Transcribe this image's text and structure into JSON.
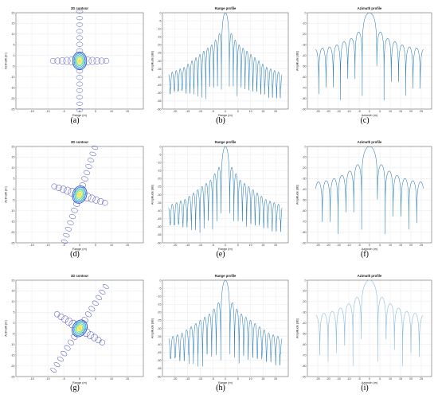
{
  "captions": [
    "(a)",
    "(b)",
    "(c)",
    "(d)",
    "(e)",
    "(f)",
    "(g)",
    "(h)",
    "(i)"
  ],
  "colors": {
    "line": "#2a7db8",
    "line_light": "#7fb6d9",
    "grid": "#e2e2e2",
    "axis": "#666666"
  },
  "chart_data": [
    {
      "id": "a",
      "type": "contour",
      "title": "2D contour",
      "xlabel": "Range (m)",
      "ylabel": "Azimuth (m)",
      "xlim": [
        -20,
        20
      ],
      "ylim": [
        -25,
        25
      ],
      "xticks": [
        "-15",
        "-10",
        "-5",
        "0",
        "5",
        "10",
        "15"
      ],
      "yticks": [
        "20",
        "15",
        "10",
        "5",
        "0",
        "-5",
        "-10",
        "-15",
        "-20",
        "-25"
      ],
      "rotation_deg": 0,
      "x_sidelobes": 5,
      "y_sidelobes": 7
    },
    {
      "id": "b",
      "type": "line",
      "title": "Range profile",
      "xlabel": "Range (m)",
      "ylabel": "Amplitude (dB)",
      "xlim": [
        -20,
        20
      ],
      "ylim": [
        -60,
        0
      ],
      "xticks": [
        "-20",
        "-15",
        "-10",
        "-5",
        "0",
        "5",
        "10",
        "15",
        "20"
      ],
      "yticks": [
        "0",
        "-5",
        "-10",
        "-15",
        "-20",
        "-25",
        "-30",
        "-35",
        "-40",
        "-45",
        "-50",
        "-55",
        "-60"
      ],
      "null_spacing": 1.25,
      "x_extent": [
        -18,
        18
      ],
      "slope_db_per_m": 1.0,
      "series": [
        {
          "peaks_db": [
            0,
            -13,
            -17,
            -20,
            -22,
            -24,
            -26,
            -28,
            -30,
            -32,
            -34,
            -35,
            -36,
            -37,
            -38
          ]
        }
      ]
    },
    {
      "id": "c",
      "type": "line",
      "title": "Azimuth profile",
      "xlabel": "Azimuth (m)",
      "ylabel": "Amplitude (dB)",
      "xlim": [
        -30,
        30
      ],
      "ylim": [
        -90,
        0
      ],
      "xticks": [
        "-25",
        "-20",
        "-15",
        "-10",
        "-5",
        "0",
        "5",
        "10",
        "15",
        "20",
        "25"
      ],
      "yticks": [
        "0",
        "-10",
        "-20",
        "-30",
        "-40",
        "-50",
        "-60",
        "-70",
        "-80",
        "-90"
      ],
      "null_spacing": 3.5,
      "x_extent": [
        -26,
        26
      ],
      "series": [
        {
          "peaks_db": [
            0,
            -18,
            -24,
            -27,
            -30,
            -32,
            -33,
            -34
          ]
        }
      ]
    },
    {
      "id": "d",
      "type": "contour",
      "title": "2D contour",
      "xlabel": "Range (m)",
      "ylabel": "Azimuth (m)",
      "xlim": [
        -20,
        20
      ],
      "ylim": [
        -25,
        25
      ],
      "xticks": [
        "-15",
        "-10",
        "-5",
        "0",
        "5",
        "10",
        "15"
      ],
      "yticks": [
        "20",
        "15",
        "10",
        "5",
        "0",
        "-5",
        "-10",
        "-15",
        "-20",
        "-25"
      ],
      "rotation_deg": 18,
      "x_sidelobes": 5,
      "y_sidelobes": 7
    },
    {
      "id": "e",
      "type": "line",
      "title": "Range profile",
      "xlabel": "Range (m)",
      "ylabel": "Amplitude (dB)",
      "xlim": [
        -20,
        20
      ],
      "ylim": [
        -60,
        0
      ],
      "xticks": [
        "-20",
        "-15",
        "-10",
        "-5",
        "0",
        "5",
        "10",
        "15",
        "20"
      ],
      "yticks": [
        "0",
        "-5",
        "-10",
        "-15",
        "-20",
        "-25",
        "-30",
        "-35",
        "-40",
        "-45",
        "-50",
        "-55",
        "-60"
      ],
      "null_spacing": 1.35,
      "x_extent": [
        -18,
        18
      ],
      "slope_db_per_m": 0.9,
      "series": [
        {
          "peaks_db": [
            0,
            -13,
            -17,
            -21,
            -23,
            -25,
            -27,
            -29,
            -31,
            -33,
            -34,
            -35,
            -36,
            -37
          ]
        }
      ]
    },
    {
      "id": "f",
      "type": "line",
      "title": "Azimuth profile",
      "xlabel": "Azimuth (m)",
      "ylabel": "Amplitude (dB)",
      "xlim": [
        -30,
        30
      ],
      "ylim": [
        -90,
        0
      ],
      "xticks": [
        "-25",
        "-20",
        "-15",
        "-10",
        "-5",
        "0",
        "5",
        "10",
        "15",
        "20",
        "25"
      ],
      "yticks": [
        "0",
        "-10",
        "-20",
        "-30",
        "-40",
        "-50",
        "-60",
        "-70",
        "-80",
        "-90"
      ],
      "null_spacing": 3.8,
      "x_extent": [
        -26,
        26
      ],
      "series": [
        {
          "peaks_db": [
            0,
            -17,
            -23,
            -27,
            -30,
            -32,
            -33
          ]
        }
      ]
    },
    {
      "id": "g",
      "type": "contour",
      "title": "2D contour",
      "xlabel": "Range (m)",
      "ylabel": "Azimuth (m)",
      "xlim": [
        -20,
        20
      ],
      "ylim": [
        -25,
        25
      ],
      "xticks": [
        "-15",
        "-10",
        "-5",
        "0",
        "5",
        "10",
        "15"
      ],
      "yticks": [
        "20",
        "15",
        "10",
        "5",
        "0",
        "-5",
        "-10",
        "-15",
        "-20",
        "-25"
      ],
      "rotation_deg": 32,
      "x_sidelobes": 5,
      "y_sidelobes": 7
    },
    {
      "id": "h",
      "type": "line",
      "title": "Range profile",
      "xlabel": "Range (m)",
      "ylabel": "Amplitude (dB)",
      "xlim": [
        -20,
        20
      ],
      "ylim": [
        -60,
        0
      ],
      "xticks": [
        "-20",
        "-15",
        "-10",
        "-5",
        "0",
        "5",
        "10",
        "15",
        "20"
      ],
      "yticks": [
        "0",
        "-5",
        "-10",
        "-15",
        "-20",
        "-25",
        "-30",
        "-35",
        "-40",
        "-45",
        "-50",
        "-55",
        "-60"
      ],
      "null_spacing": 1.45,
      "x_extent": [
        -18,
        18
      ],
      "slope_db_per_m": 0.8,
      "series": [
        {
          "peaks_db": [
            0,
            -14,
            -18,
            -21,
            -23,
            -25,
            -27,
            -29,
            -31,
            -33,
            -34,
            -35,
            -36
          ]
        }
      ]
    },
    {
      "id": "i",
      "type": "line",
      "title": "Azimuth profile",
      "xlabel": "Azimuth (m)",
      "ylabel": "Amplitude (dB)",
      "xlim": [
        -30,
        30
      ],
      "ylim": [
        -90,
        0
      ],
      "xticks": [
        "-25",
        "-20",
        "-15",
        "-10",
        "-5",
        "0",
        "5",
        "10",
        "15",
        "20",
        "25"
      ],
      "yticks": [
        "0",
        "-10",
        "-20",
        "-30",
        "-40",
        "-50",
        "-60",
        "-70",
        "-80",
        "-90"
      ],
      "null_spacing": 4.0,
      "x_extent": [
        -26,
        26
      ],
      "light": true,
      "series": [
        {
          "peaks_db": [
            0,
            -16,
            -22,
            -26,
            -29,
            -31,
            -33
          ]
        }
      ]
    }
  ]
}
